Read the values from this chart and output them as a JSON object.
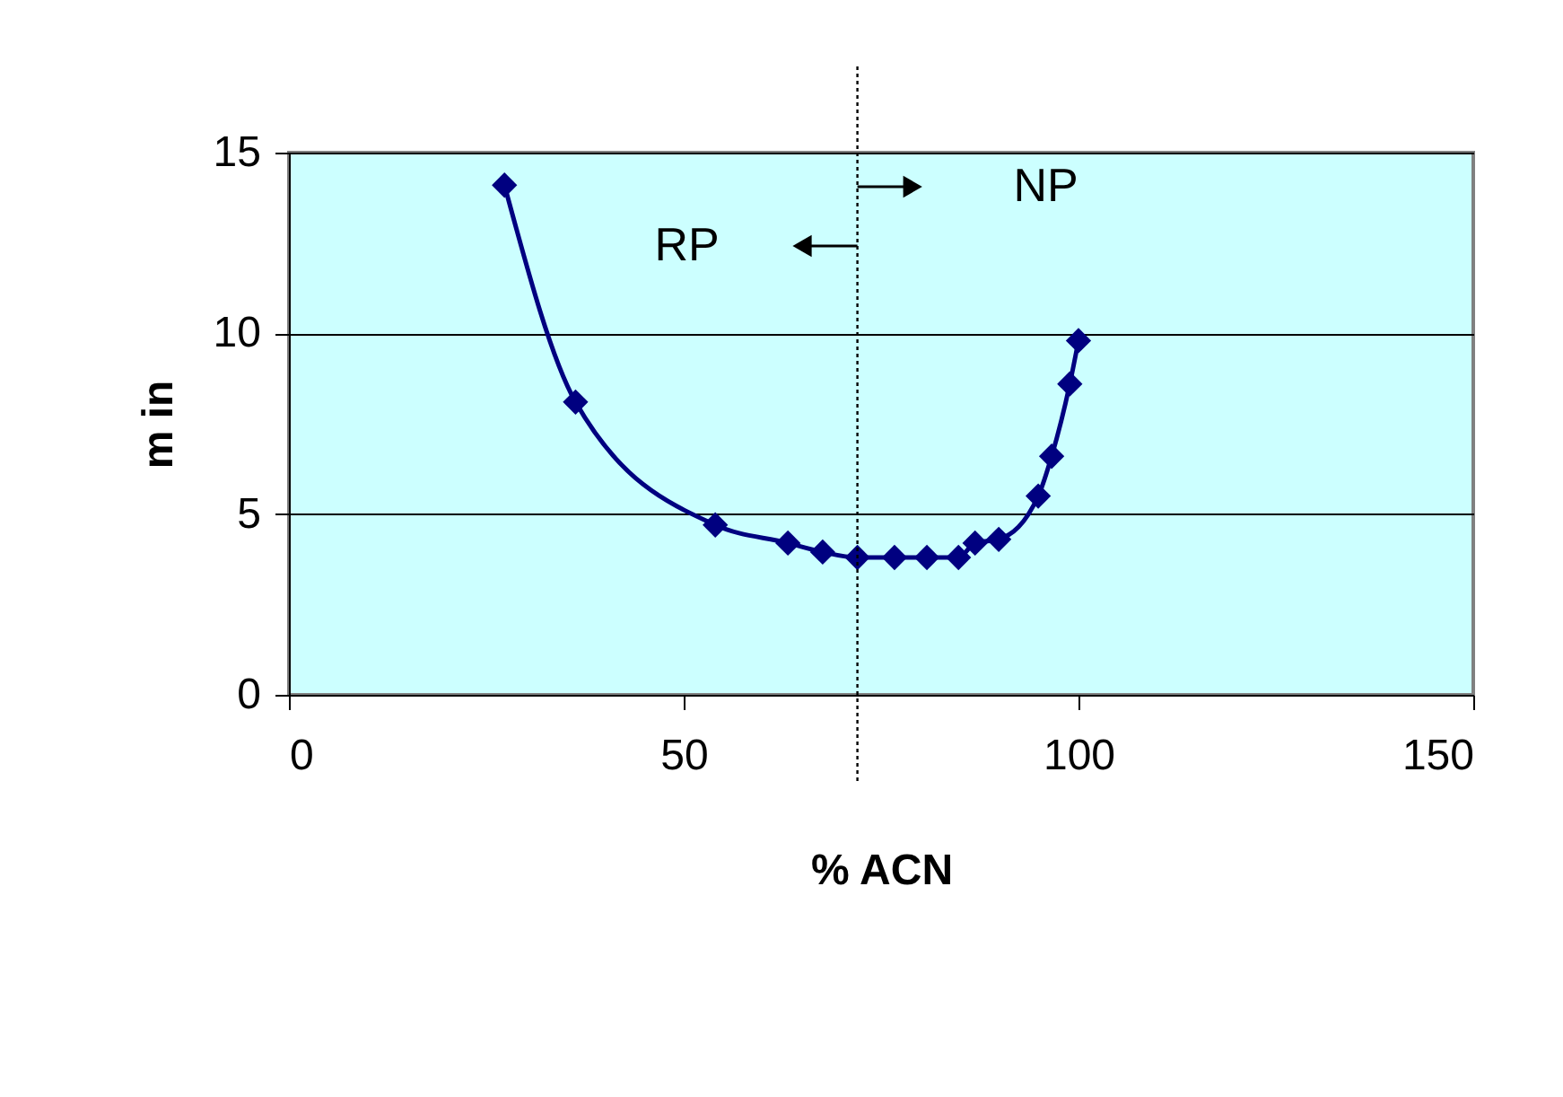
{
  "chart_data": {
    "type": "line",
    "xlabel": "% ACN",
    "ylabel": "m in",
    "x": [
      27.3,
      36.3,
      54.0,
      63.2,
      67.6,
      72.0,
      76.7,
      80.8,
      84.8,
      86.9,
      89.9,
      94.9,
      96.6,
      98.9,
      100
    ],
    "series": [
      {
        "color": "#000080",
        "values": [
          14.1,
          8.1,
          4.7,
          4.2,
          3.95,
          3.8,
          3.8,
          3.8,
          3.8,
          4.2,
          4.3,
          5.5,
          6.6,
          8.6,
          9.8
        ]
      }
    ],
    "xlim": [
      0,
      150
    ],
    "xticks": [
      0,
      50,
      100,
      150
    ],
    "ylim": [
      0,
      15
    ],
    "yticks": [
      0,
      5,
      10,
      15
    ],
    "grid": "y",
    "marker": "diamond",
    "line_style": "solid",
    "ref_lines": [
      {
        "axis": "x",
        "value": 72,
        "line_style": "dotted",
        "color": "#000000"
      }
    ],
    "annotations": [
      "RP",
      "NP"
    ]
  }
}
